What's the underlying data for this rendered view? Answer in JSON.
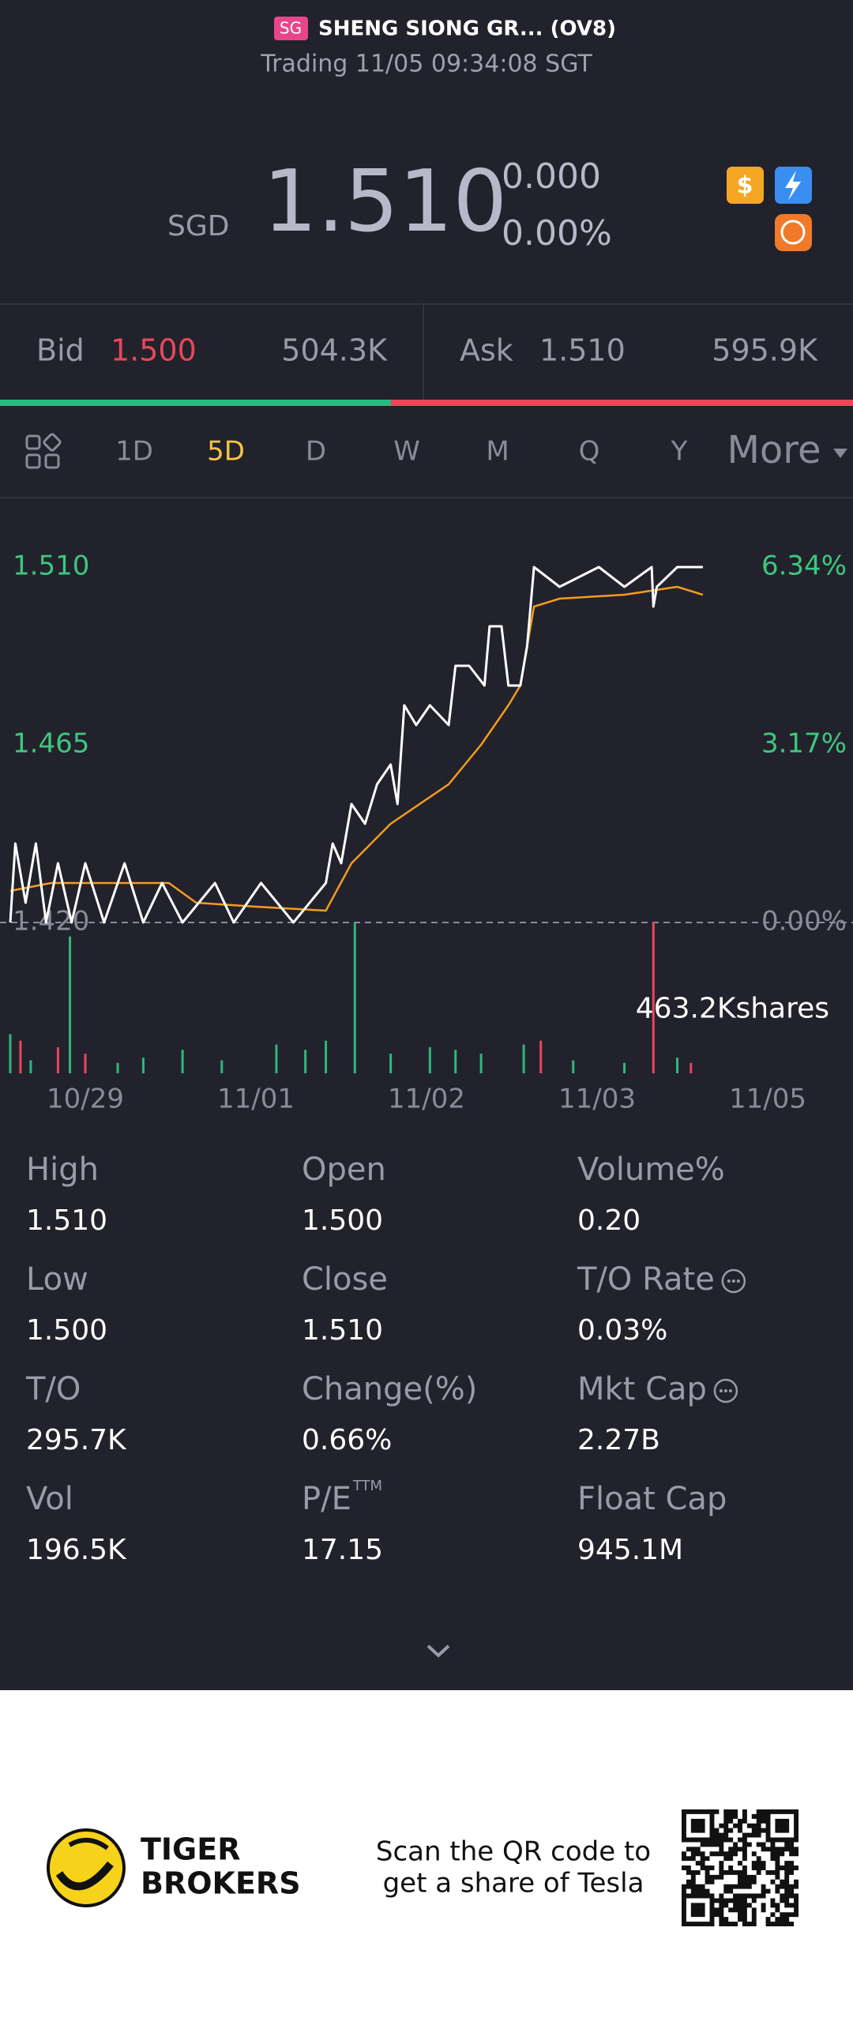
{
  "header": {
    "badge": "SG",
    "name": "SHENG SIONG GR... (OV8)",
    "status": "Trading 11/05 09:34:08 SGT"
  },
  "quote": {
    "currency": "SGD",
    "price": "1.510",
    "change": "0.000",
    "change_pct": "0.00%"
  },
  "bidask": {
    "bid_label": "Bid",
    "bid": "1.500",
    "bid_size": "504.3K",
    "ask_label": "Ask",
    "ask": "1.510",
    "ask_size": "595.9K"
  },
  "tabs": {
    "items": [
      "1D",
      "5D",
      "D",
      "W",
      "M",
      "Q",
      "Y",
      "More"
    ],
    "active": 1
  },
  "chart_data": {
    "type": "line",
    "xlim": [
      0,
      5
    ],
    "xticks": [
      {
        "value": 0.5,
        "label": "10/29"
      },
      {
        "value": 1.5,
        "label": "11/01"
      },
      {
        "value": 2.5,
        "label": "11/02"
      },
      {
        "value": 3.5,
        "label": "11/03"
      },
      {
        "value": 4.5,
        "label": "11/05"
      }
    ],
    "ylim": [
      1.42,
      1.51
    ],
    "yticks": [
      {
        "value": 1.51,
        "label": "1.510"
      },
      {
        "value": 1.465,
        "label": "1.465"
      },
      {
        "value": 1.42,
        "label": "1.420"
      }
    ],
    "y2lim": [
      0,
      6.34
    ],
    "y2ticks": [
      {
        "value": 6.34,
        "label": "6.34%"
      },
      {
        "value": 3.17,
        "label": "3.17%"
      },
      {
        "value": 0,
        "label": "0.00%"
      }
    ],
    "series": [
      {
        "name": "Price",
        "color": "#ffffff",
        "x": [
          0.06,
          0.09,
          0.15,
          0.21,
          0.27,
          0.34,
          0.42,
          0.5,
          0.61,
          0.73,
          0.84,
          0.95,
          1.07,
          1.26,
          1.37,
          1.53,
          1.72,
          1.91,
          1.95,
          2.0,
          2.06,
          2.14,
          2.21,
          2.29,
          2.33,
          2.37,
          2.44,
          2.52,
          2.63,
          2.67,
          2.75,
          2.84,
          2.87,
          2.94,
          2.98,
          3.05,
          3.09,
          3.13,
          3.28,
          3.51,
          3.66,
          3.82,
          3.83,
          3.85,
          3.97,
          4.12
        ],
        "values": [
          1.42,
          1.44,
          1.425,
          1.44,
          1.42,
          1.435,
          1.42,
          1.435,
          1.42,
          1.435,
          1.42,
          1.43,
          1.42,
          1.43,
          1.42,
          1.43,
          1.42,
          1.43,
          1.44,
          1.435,
          1.45,
          1.445,
          1.455,
          1.46,
          1.45,
          1.475,
          1.47,
          1.475,
          1.47,
          1.485,
          1.485,
          1.48,
          1.495,
          1.495,
          1.48,
          1.48,
          1.49,
          1.51,
          1.505,
          1.51,
          1.505,
          1.51,
          1.5,
          1.505,
          1.51,
          1.51
        ]
      },
      {
        "name": "Average",
        "color": "#f39c1f",
        "x": [
          0.06,
          0.3,
          0.99,
          1.15,
          1.5,
          1.91,
          2.06,
          2.29,
          2.63,
          2.82,
          2.98,
          3.05,
          3.13,
          3.28,
          3.66,
          3.97,
          4.12
        ],
        "values": [
          1.428,
          1.43,
          1.43,
          1.425,
          1.424,
          1.423,
          1.435,
          1.445,
          1.455,
          1.465,
          1.475,
          1.48,
          1.5,
          1.502,
          1.503,
          1.505,
          1.503
        ]
      }
    ],
    "volume": {
      "ylim": [
        0,
        463.2
      ],
      "max_label": {
        "value": 463.2,
        "label": "463.2Kshares"
      },
      "x": [
        0.06,
        0.12,
        0.18,
        0.34,
        0.41,
        0.5,
        0.69,
        0.84,
        1.07,
        1.3,
        1.62,
        1.79,
        1.91,
        2.08,
        2.29,
        2.52,
        2.67,
        2.82,
        3.07,
        3.17,
        3.36,
        3.66,
        3.83,
        3.97,
        4.05
      ],
      "values": [
        120,
        100,
        40,
        80,
        419,
        60,
        32,
        48,
        72,
        40,
        88,
        72,
        100,
        460,
        60,
        80,
        72,
        60,
        88,
        100,
        40,
        32,
        463.2,
        48,
        32
      ],
      "colors": [
        "#2db87d",
        "#e8475a",
        "#2db87d",
        "#e8475a",
        "#2db87d",
        "#e8475a",
        "#2db87d",
        "#2db87d",
        "#2db87d",
        "#2db87d",
        "#2db87d",
        "#2db87d",
        "#2db87d",
        "#2db87d",
        "#2db87d",
        "#2db87d",
        "#2db87d",
        "#2db87d",
        "#2db87d",
        "#e8475a",
        "#2db87d",
        "#2db87d",
        "#e8475a",
        "#2db87d",
        "#e8475a"
      ]
    }
  },
  "stats": [
    {
      "label": "High",
      "value": "1.510"
    },
    {
      "label": "Open",
      "value": "1.500"
    },
    {
      "label": "Volume%",
      "value": "0.20"
    },
    {
      "label": "Low",
      "value": "1.500"
    },
    {
      "label": "Close",
      "value": "1.510"
    },
    {
      "label": "T/O Rate",
      "value": "0.03%",
      "info": true
    },
    {
      "label": "T/O",
      "value": "295.7K"
    },
    {
      "label": "Change(%)",
      "value": "0.66%"
    },
    {
      "label": "Mkt Cap",
      "value": "2.27B",
      "info": true
    },
    {
      "label": "Vol",
      "value": "196.5K"
    },
    {
      "label": "P/E",
      "sup": "TTM",
      "value": "17.15"
    },
    {
      "label": "Float Cap",
      "value": "945.1M"
    }
  ],
  "footer": {
    "brand_line1": "TIGER",
    "brand_line2": "BROKERS",
    "promo_line1": "Scan the QR code to",
    "promo_line2": "get a share of Tesla"
  }
}
